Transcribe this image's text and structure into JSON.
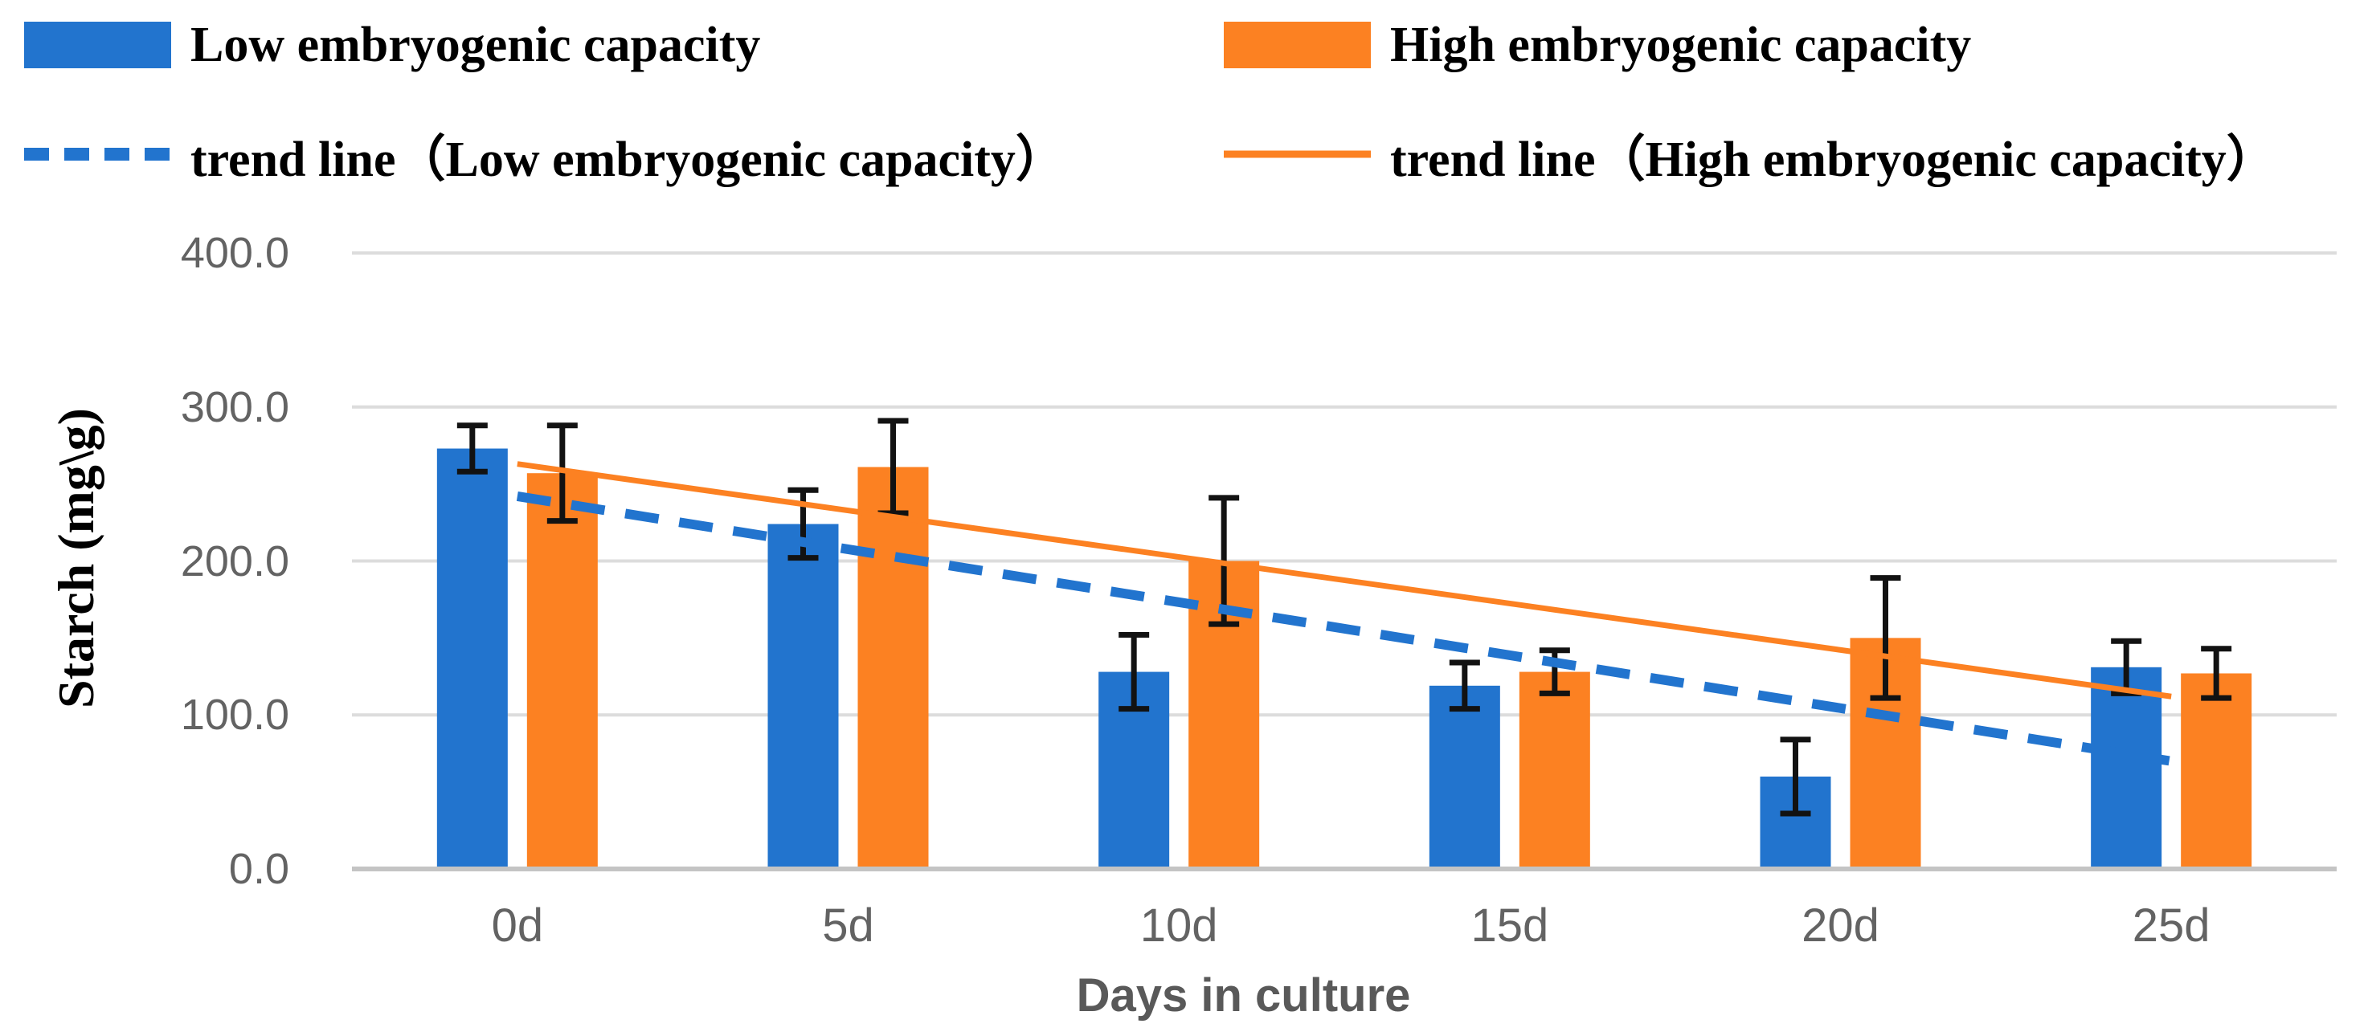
{
  "legend": {
    "items": [
      {
        "label": "Low embryogenic capacity",
        "swatch": "bar",
        "series": "low"
      },
      {
        "label": "High embryogenic capacity",
        "swatch": "bar",
        "series": "high"
      },
      {
        "label": "trend line（Low embryogenic capacity）",
        "swatch": "dashed-line",
        "series": "low"
      },
      {
        "label": "trend line（High embryogenic capacity）",
        "swatch": "solid-line",
        "series": "high"
      }
    ]
  },
  "colors": {
    "low": "#2274CE",
    "high": "#FC8122",
    "grid": "#DCDCDC",
    "axis_line": "#C4C4C4",
    "error": "#121212",
    "tick_text": "#636363",
    "axis_title_text": "#595959"
  },
  "y_axis": {
    "title": "Starch (mg\\g)",
    "ticks": [
      "0.0",
      "100.0",
      "200.0",
      "300.0",
      "400.0"
    ],
    "tick_values": [
      0,
      100,
      200,
      300,
      400
    ],
    "max": 400
  },
  "x_axis": {
    "title": "Days in culture"
  },
  "chart_data": {
    "type": "bar",
    "categories": [
      "0d",
      "5d",
      "10d",
      "15d",
      "20d",
      "25d"
    ],
    "series": [
      {
        "name": "Low embryogenic capacity",
        "color": "#2274CE",
        "values": [
          273,
          224,
          128,
          119,
          60,
          131
        ],
        "error": [
          15,
          22,
          24,
          15,
          24,
          17
        ]
      },
      {
        "name": "High embryogenic capacity",
        "color": "#FC8122",
        "values": [
          257,
          261,
          200,
          128,
          150,
          127
        ],
        "error": [
          31,
          30,
          41,
          14,
          39,
          16
        ]
      }
    ],
    "trend_lines": [
      {
        "name": "trend line（Low embryogenic capacity）",
        "color": "#2274CE",
        "style": "dashed",
        "start": 242,
        "end": 70
      },
      {
        "name": "trend line（High embryogenic capacity）",
        "color": "#FC8122",
        "style": "solid",
        "start": 263,
        "end": 112
      }
    ],
    "title": "",
    "xlabel": "Days in culture",
    "ylabel": "Starch (mg\\g)",
    "ylim": [
      0,
      400
    ],
    "grid": true,
    "legend_position": "top"
  }
}
